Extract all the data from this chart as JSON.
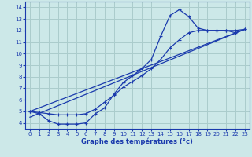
{
  "xlabel": "Graphe des températures (°c)",
  "bg_color": "#cce8e8",
  "grid_color": "#aacccc",
  "line_color": "#1a3aad",
  "xlim": [
    -0.5,
    23.5
  ],
  "ylim": [
    3.5,
    14.5
  ],
  "yticks": [
    4,
    5,
    6,
    7,
    8,
    9,
    10,
    11,
    12,
    13,
    14
  ],
  "xticks": [
    0,
    1,
    2,
    3,
    4,
    5,
    6,
    7,
    8,
    9,
    10,
    11,
    12,
    13,
    14,
    15,
    16,
    17,
    18,
    19,
    20,
    21,
    22,
    23
  ],
  "line1_x": [
    0,
    1,
    2,
    3,
    4,
    5,
    6,
    7,
    8,
    9,
    10,
    11,
    12,
    13,
    14,
    15,
    16,
    17,
    18,
    19,
    20,
    21,
    22,
    23
  ],
  "line1_y": [
    5.0,
    4.8,
    4.2,
    3.9,
    3.9,
    3.9,
    4.0,
    4.8,
    5.3,
    6.5,
    7.5,
    8.1,
    8.7,
    9.5,
    11.5,
    13.3,
    13.8,
    13.2,
    12.2,
    12.0,
    12.0,
    12.0,
    11.8,
    12.1
  ],
  "line2_x": [
    0,
    1,
    2,
    3,
    4,
    5,
    6,
    7,
    8,
    9,
    10,
    11,
    12,
    13,
    14,
    15,
    16,
    17,
    18,
    19,
    20,
    21,
    22,
    23
  ],
  "line2_y": [
    5.0,
    4.9,
    4.8,
    4.7,
    4.7,
    4.7,
    4.8,
    5.2,
    5.8,
    6.4,
    7.1,
    7.6,
    8.1,
    8.7,
    9.5,
    10.5,
    11.2,
    11.8,
    12.0,
    12.0,
    12.0,
    12.0,
    12.0,
    12.1
  ],
  "line3_x": [
    0,
    23
  ],
  "line3_y": [
    5.0,
    12.1
  ],
  "line4_x": [
    0,
    23
  ],
  "line4_y": [
    4.5,
    12.1
  ]
}
